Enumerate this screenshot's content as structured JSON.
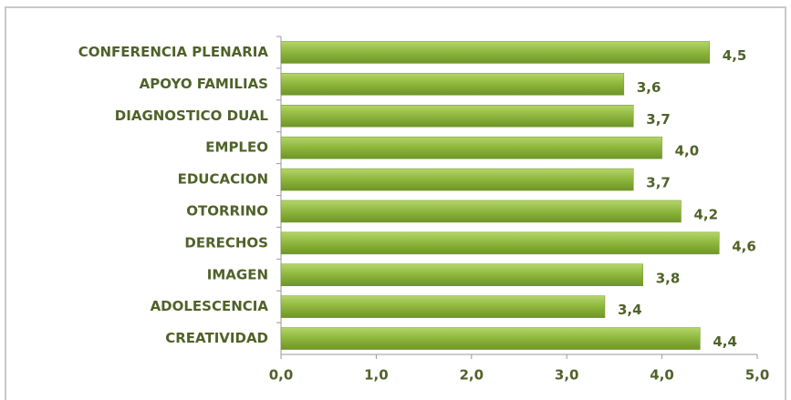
{
  "chart_data": {
    "type": "barh",
    "categories": [
      "CONFERENCIA PLENARIA",
      "APOYO FAMILIAS",
      "DIAGNOSTICO DUAL",
      "EMPLEO",
      "EDUCACION",
      "OTORRINO",
      "DERECHOS",
      "IMAGEN",
      "ADOLESCENCIA",
      "CREATIVIDAD"
    ],
    "values": [
      4.5,
      3.6,
      3.7,
      4.0,
      3.7,
      4.2,
      4.6,
      3.8,
      3.4,
      4.4
    ],
    "value_labels": [
      "4,5",
      "3,6",
      "3,7",
      "4,0",
      "3,7",
      "4,2",
      "4,6",
      "3,8",
      "3,4",
      "4,4"
    ],
    "color": "#8cb63c",
    "xlim": [
      0,
      5
    ],
    "xticks": [
      {
        "value": 0,
        "label": "0,0"
      },
      {
        "value": 1,
        "label": "1,0"
      },
      {
        "value": 2,
        "label": "2,0"
      },
      {
        "value": 3,
        "label": "3,0"
      },
      {
        "value": 4,
        "label": "4,0"
      },
      {
        "value": 5,
        "label": "5,0"
      }
    ]
  }
}
